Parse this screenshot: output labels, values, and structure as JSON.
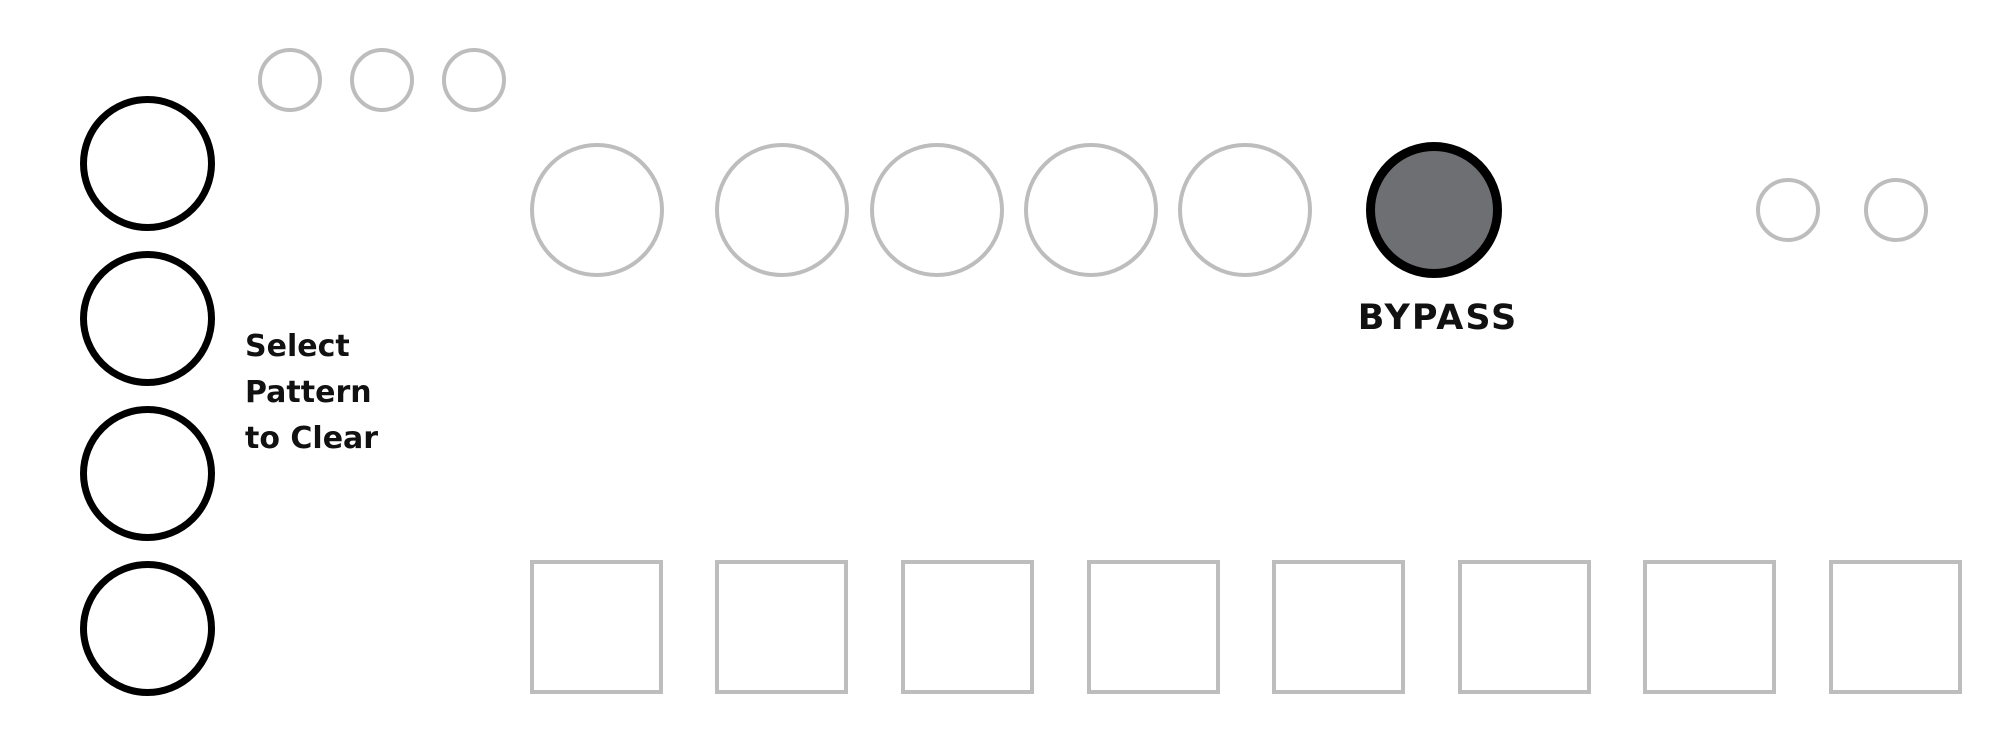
{
  "panel": {
    "select_label": {
      "line1": "Select",
      "line2": "Pattern",
      "line3": "to Clear"
    },
    "bypass_label": "BYPASS"
  },
  "colors": {
    "background": "#ffffff",
    "dark_ring": "#000000",
    "light_ring": "#bdbdbd",
    "bypass_fill": "#6e6f73"
  }
}
